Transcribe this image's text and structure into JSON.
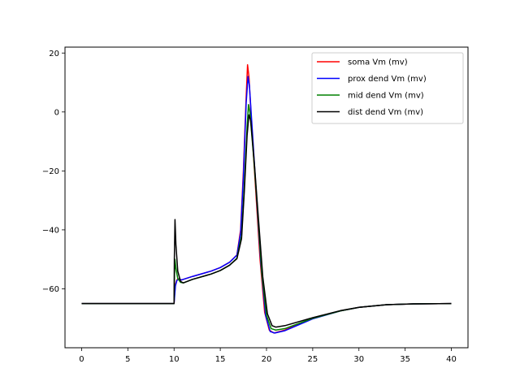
{
  "chart_data": {
    "type": "line",
    "title": "",
    "xlabel": "",
    "ylabel": "",
    "xlim": [
      -1.8,
      41.8
    ],
    "ylim": [
      -80,
      22
    ],
    "xticks": [
      0,
      5,
      10,
      15,
      20,
      25,
      30,
      35,
      40
    ],
    "xtick_labels": [
      "0",
      "5",
      "10",
      "15",
      "20",
      "25",
      "30",
      "35",
      "40"
    ],
    "yticks": [
      20,
      0,
      -20,
      -40,
      -60
    ],
    "ytick_labels": [
      "20",
      "0",
      "−20",
      "−40",
      "−60"
    ],
    "grid": false,
    "legend_position": "top-right",
    "series": [
      {
        "name": "soma Vm (mv)",
        "color": "#ff0000",
        "points": [
          [
            0,
            -65
          ],
          [
            10,
            -65
          ],
          [
            10.05,
            -62
          ],
          [
            10.15,
            -58.5
          ],
          [
            10.3,
            -57
          ],
          [
            10.5,
            -56.6
          ],
          [
            10.8,
            -57
          ],
          [
            12,
            -55.8
          ],
          [
            14,
            -54
          ],
          [
            15,
            -52.8
          ],
          [
            16,
            -51
          ],
          [
            16.8,
            -48.5
          ],
          [
            17.2,
            -40
          ],
          [
            17.5,
            -20
          ],
          [
            17.8,
            5
          ],
          [
            17.95,
            16
          ],
          [
            18.1,
            12
          ],
          [
            18.4,
            -5
          ],
          [
            18.8,
            -25
          ],
          [
            19.3,
            -50
          ],
          [
            19.8,
            -68
          ],
          [
            20.3,
            -74
          ],
          [
            20.8,
            -75
          ],
          [
            22,
            -74
          ],
          [
            25,
            -70
          ],
          [
            28,
            -67.5
          ],
          [
            30,
            -66.3
          ],
          [
            33,
            -65.4
          ],
          [
            36,
            -65.1
          ],
          [
            40,
            -65
          ]
        ]
      },
      {
        "name": "prox dend Vm (mv)",
        "color": "#0000ff",
        "points": [
          [
            0,
            -65
          ],
          [
            10,
            -65
          ],
          [
            10.05,
            -63
          ],
          [
            10.15,
            -59
          ],
          [
            10.3,
            -57.2
          ],
          [
            10.5,
            -56.7
          ],
          [
            10.8,
            -57
          ],
          [
            12,
            -55.8
          ],
          [
            14,
            -54
          ],
          [
            15,
            -52.8
          ],
          [
            16,
            -51
          ],
          [
            16.8,
            -48.6
          ],
          [
            17.2,
            -41
          ],
          [
            17.5,
            -22
          ],
          [
            17.8,
            3
          ],
          [
            18.0,
            12
          ],
          [
            18.15,
            9
          ],
          [
            18.5,
            -8
          ],
          [
            18.9,
            -28
          ],
          [
            19.4,
            -52
          ],
          [
            19.9,
            -69
          ],
          [
            20.4,
            -74.5
          ],
          [
            20.9,
            -75
          ],
          [
            22,
            -74.2
          ],
          [
            25,
            -70.2
          ],
          [
            28,
            -67.5
          ],
          [
            30,
            -66.3
          ],
          [
            33,
            -65.4
          ],
          [
            36,
            -65.1
          ],
          [
            40,
            -65
          ]
        ]
      },
      {
        "name": "mid dend Vm (mv)",
        "color": "#008000",
        "points": [
          [
            0,
            -65
          ],
          [
            10,
            -65
          ],
          [
            10.05,
            -55
          ],
          [
            10.1,
            -50
          ],
          [
            10.2,
            -53
          ],
          [
            10.4,
            -56.5
          ],
          [
            10.7,
            -57.8
          ],
          [
            11,
            -58
          ],
          [
            12,
            -56.8
          ],
          [
            14,
            -55
          ],
          [
            15,
            -53.8
          ],
          [
            16,
            -52
          ],
          [
            16.8,
            -49.6
          ],
          [
            17.3,
            -42
          ],
          [
            17.6,
            -25
          ],
          [
            17.9,
            -5
          ],
          [
            18.05,
            2.5
          ],
          [
            18.2,
            0
          ],
          [
            18.6,
            -15
          ],
          [
            19,
            -32
          ],
          [
            19.5,
            -55
          ],
          [
            20,
            -69
          ],
          [
            20.5,
            -73.5
          ],
          [
            21,
            -74
          ],
          [
            22,
            -73.5
          ],
          [
            25,
            -70
          ],
          [
            28,
            -67.5
          ],
          [
            30,
            -66.3
          ],
          [
            33,
            -65.4
          ],
          [
            36,
            -65.1
          ],
          [
            40,
            -65
          ]
        ]
      },
      {
        "name": "dist dend Vm (mv)",
        "color": "#000000",
        "points": [
          [
            0,
            -65
          ],
          [
            10,
            -65
          ],
          [
            10.03,
            -50
          ],
          [
            10.1,
            -36.5
          ],
          [
            10.2,
            -45
          ],
          [
            10.4,
            -54
          ],
          [
            10.7,
            -57.5
          ],
          [
            11,
            -58
          ],
          [
            12,
            -56.8
          ],
          [
            14,
            -55
          ],
          [
            15,
            -53.8
          ],
          [
            16,
            -52
          ],
          [
            16.8,
            -49.8
          ],
          [
            17.3,
            -43
          ],
          [
            17.6,
            -27
          ],
          [
            17.9,
            -8
          ],
          [
            18.1,
            -1
          ],
          [
            18.3,
            -3
          ],
          [
            18.7,
            -18
          ],
          [
            19.1,
            -35
          ],
          [
            19.6,
            -56
          ],
          [
            20.1,
            -68.5
          ],
          [
            20.6,
            -72.5
          ],
          [
            21,
            -73
          ],
          [
            22,
            -72.5
          ],
          [
            25,
            -69.8
          ],
          [
            28,
            -67.4
          ],
          [
            30,
            -66.3
          ],
          [
            33,
            -65.4
          ],
          [
            36,
            -65.1
          ],
          [
            40,
            -65
          ]
        ]
      }
    ]
  }
}
